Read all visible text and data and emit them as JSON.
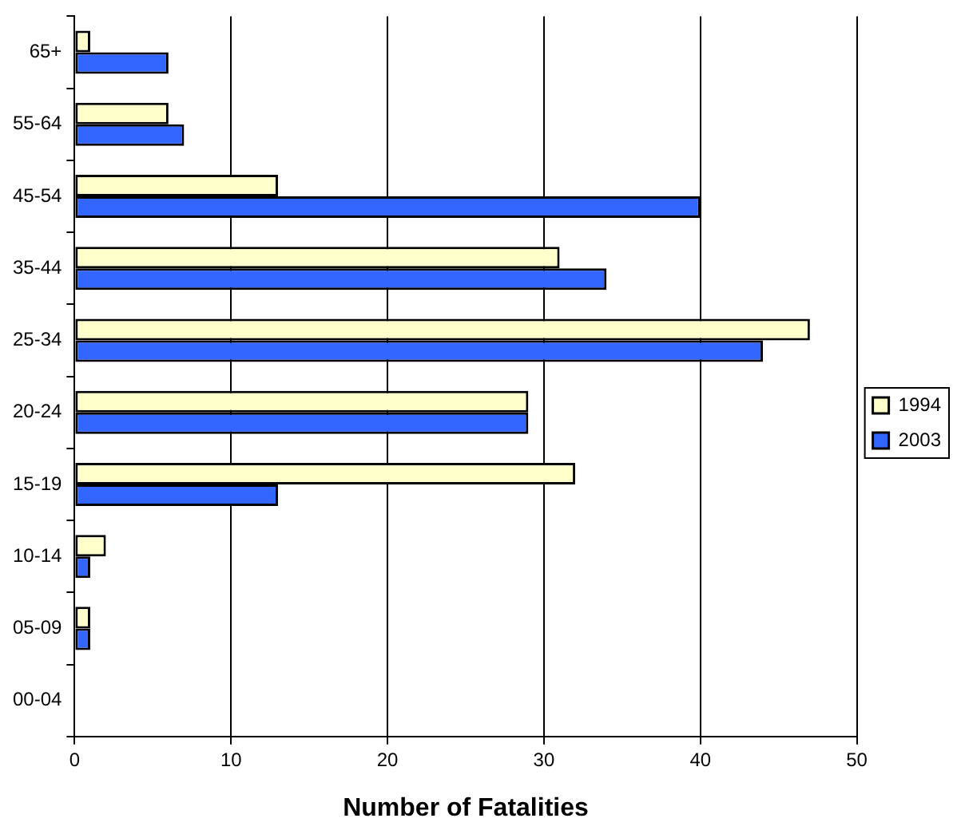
{
  "chart_data": {
    "type": "bar",
    "orientation": "horizontal",
    "xlabel": "Number of Fatalities",
    "categories": [
      "65+",
      "55-64",
      "45-54",
      "35-44",
      "25-34",
      "20-24",
      "15-19",
      "10-14",
      "05-09",
      "00-04"
    ],
    "series": [
      {
        "name": "1994",
        "color": "#ffffcc",
        "values": [
          1,
          6,
          13,
          31,
          47,
          29,
          32,
          2,
          1,
          0
        ]
      },
      {
        "name": "2003",
        "color": "#3366ff",
        "values": [
          6,
          7,
          40,
          34,
          44,
          29,
          13,
          1,
          1,
          0
        ]
      }
    ],
    "xlim": [
      0,
      50
    ],
    "xticks": [
      0,
      10,
      20,
      30,
      40,
      50
    ],
    "grid": "x",
    "legend": "right"
  }
}
